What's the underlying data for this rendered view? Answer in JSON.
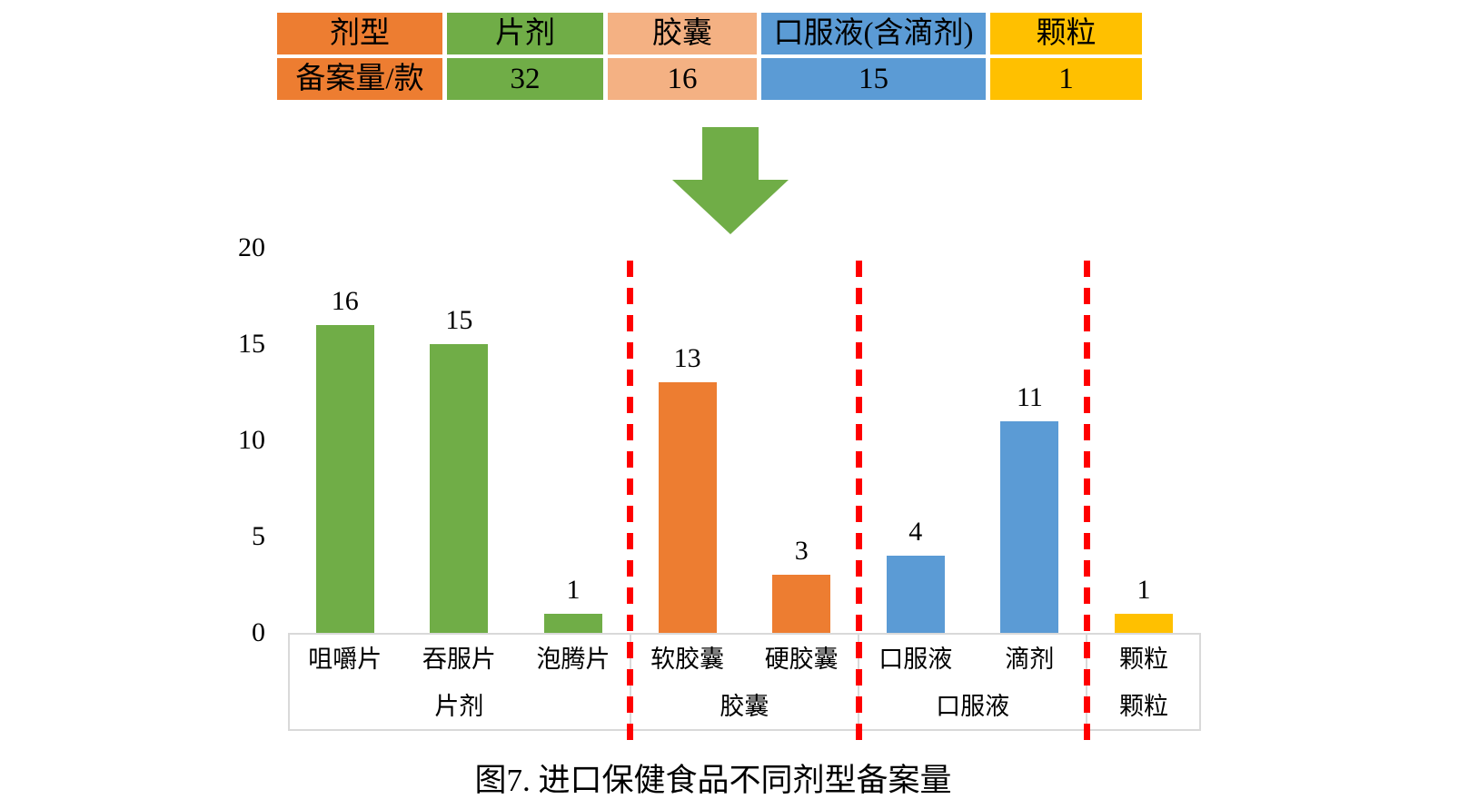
{
  "table": {
    "columns": [
      {
        "header": "剂型",
        "value": "备案量/款",
        "color": "#ED7D31"
      },
      {
        "header": "片剂",
        "value": "32",
        "color": "#70AD47"
      },
      {
        "header": "胶囊",
        "value": "16",
        "color": "#F4B183"
      },
      {
        "header": "口服液(含滴剂)",
        "value": "15",
        "color": "#5B9BD5"
      },
      {
        "header": "颗粒",
        "value": "1",
        "color": "#FFC000"
      }
    ]
  },
  "arrow": {
    "color": "#70AD47"
  },
  "chart_data": {
    "type": "bar",
    "title": "图7. 进口保健食品不同剂型备案量",
    "xlabel": "",
    "ylabel": "",
    "ylim": [
      0,
      20
    ],
    "yticks": [
      0,
      5,
      10,
      15,
      20
    ],
    "grid": false,
    "legend": "none",
    "groups": [
      {
        "name": "片剂",
        "color": "#70AD47",
        "bars": [
          {
            "label": "咀嚼片",
            "value": 16
          },
          {
            "label": "吞服片",
            "value": 15
          },
          {
            "label": "泡腾片",
            "value": 1
          }
        ]
      },
      {
        "name": "胶囊",
        "color": "#ED7D31",
        "bars": [
          {
            "label": "软胶囊",
            "value": 13
          },
          {
            "label": "硬胶囊",
            "value": 3
          }
        ]
      },
      {
        "name": "口服液",
        "color": "#5B9BD5",
        "bars": [
          {
            "label": "口服液",
            "value": 4
          },
          {
            "label": "滴剂",
            "value": 11
          }
        ]
      },
      {
        "name": "颗粒",
        "color": "#FFC000",
        "bars": [
          {
            "label": "颗粒",
            "value": 1
          }
        ]
      }
    ],
    "separator_color": "#FF0000",
    "axis_box_border_color": "#D9D9D9"
  }
}
